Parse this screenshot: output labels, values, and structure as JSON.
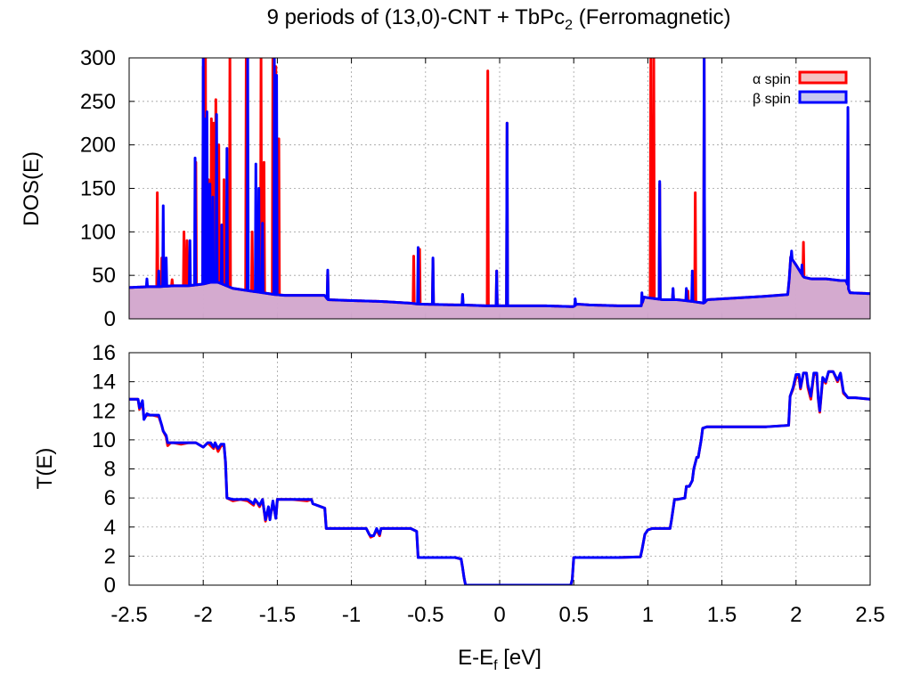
{
  "figure": {
    "title_main": "9 periods of (13,0)-CNT + TbPc",
    "title_sub": "2",
    "title_tail": " (Ferromagnetic)"
  },
  "chart_data": [
    {
      "type": "line",
      "name": "dos",
      "ylabel": "DOS(E)",
      "xlim": [
        -2.5,
        2.5
      ],
      "ylim": [
        0,
        300
      ],
      "yticks": [
        0,
        50,
        100,
        150,
        200,
        250,
        300
      ],
      "xticks": [
        -2.5,
        -2,
        -1.5,
        -1,
        -0.5,
        0,
        0.5,
        1,
        1.5,
        2,
        2.5
      ],
      "grid": true,
      "legend_position": "top-right",
      "legend": [
        {
          "label": "α spin",
          "line_color": "#ff0000",
          "fill_color": "#f4c2c2"
        },
        {
          "label": "β spin",
          "line_color": "#0000ff",
          "fill_color": "#c8c8f0"
        }
      ],
      "overlap_fill_color": "#c8a0d2",
      "baseline": [
        [
          -2.5,
          36
        ],
        [
          -2.36,
          37
        ],
        [
          -2.3,
          37
        ],
        [
          -2.2,
          38
        ],
        [
          -2.1,
          38
        ],
        [
          -2.0,
          40
        ],
        [
          -1.95,
          42
        ],
        [
          -1.9,
          42
        ],
        [
          -1.8,
          35
        ],
        [
          -1.72,
          33
        ],
        [
          -1.6,
          30
        ],
        [
          -1.52,
          28
        ],
        [
          -1.45,
          27
        ],
        [
          -1.3,
          27
        ],
        [
          -1.18,
          27
        ],
        [
          -1.16,
          22
        ],
        [
          -1.0,
          21
        ],
        [
          -0.8,
          20
        ],
        [
          -0.6,
          18
        ],
        [
          -0.55,
          17
        ],
        [
          -0.3,
          16
        ],
        [
          -0.25,
          16
        ],
        [
          -0.1,
          15
        ],
        [
          0.0,
          15
        ],
        [
          0.3,
          15
        ],
        [
          0.5,
          14
        ],
        [
          0.52,
          17
        ],
        [
          0.6,
          16
        ],
        [
          0.8,
          15
        ],
        [
          0.96,
          15
        ],
        [
          0.97,
          25
        ],
        [
          1.1,
          22
        ],
        [
          1.2,
          22
        ],
        [
          1.3,
          20
        ],
        [
          1.38,
          18
        ],
        [
          1.4,
          22
        ],
        [
          1.6,
          24
        ],
        [
          1.8,
          26
        ],
        [
          1.95,
          28
        ],
        [
          1.96,
          72
        ],
        [
          2.0,
          62
        ],
        [
          2.05,
          48
        ],
        [
          2.1,
          46
        ],
        [
          2.2,
          46
        ],
        [
          2.3,
          44
        ],
        [
          2.34,
          44
        ],
        [
          2.36,
          30
        ],
        [
          2.5,
          29
        ]
      ],
      "series": [
        {
          "name": "α spin",
          "color": "#ff0000",
          "peaks": [
            [
              -2.31,
              145
            ],
            [
              -2.28,
              70
            ],
            [
              -2.21,
              45
            ],
            [
              -2.13,
              100
            ],
            [
              -2.11,
              90
            ],
            [
              -2.05,
              180
            ],
            [
              -2.0,
              290
            ],
            [
              -1.985,
              300
            ],
            [
              -1.965,
              160
            ],
            [
              -1.945,
              230
            ],
            [
              -1.93,
              225
            ],
            [
              -1.915,
              252
            ],
            [
              -1.895,
              200
            ],
            [
              -1.86,
              160
            ],
            [
              -1.82,
              300
            ],
            [
              -1.71,
              300
            ],
            [
              -1.67,
              100
            ],
            [
              -1.64,
              130
            ],
            [
              -1.61,
              300
            ],
            [
              -1.59,
              180
            ],
            [
              -1.53,
              300
            ],
            [
              -1.51,
              290
            ],
            [
              -1.49,
              207
            ],
            [
              -1.16,
              55
            ],
            [
              -0.58,
              72
            ],
            [
              -0.54,
              80
            ],
            [
              -0.45,
              68
            ],
            [
              -0.25,
              28
            ],
            [
              -0.08,
              285
            ],
            [
              -0.02,
              55
            ],
            [
              0.05,
              225
            ],
            [
              1.02,
              300
            ],
            [
              1.04,
              300
            ],
            [
              1.08,
              155
            ],
            [
              1.17,
              34
            ],
            [
              1.27,
              32
            ],
            [
              1.32,
              145
            ],
            [
              1.38,
              300
            ],
            [
              2.05,
              88
            ],
            [
              2.35,
              240
            ]
          ]
        },
        {
          "name": "β spin",
          "color": "#0000ff",
          "peaks": [
            [
              -2.38,
              46
            ],
            [
              -2.3,
              55
            ],
            [
              -2.27,
              130
            ],
            [
              -2.25,
              70
            ],
            [
              -2.09,
              90
            ],
            [
              -2.055,
              185
            ],
            [
              -2.0,
              300
            ],
            [
              -1.99,
              230
            ],
            [
              -1.975,
              238
            ],
            [
              -1.955,
              155
            ],
            [
              -1.935,
              140
            ],
            [
              -1.91,
              235
            ],
            [
              -1.875,
              108
            ],
            [
              -1.84,
              196
            ],
            [
              -1.7,
              300
            ],
            [
              -1.645,
              178
            ],
            [
              -1.625,
              150
            ],
            [
              -1.6,
              110
            ],
            [
              -1.52,
              300
            ],
            [
              -1.505,
              280
            ],
            [
              -1.16,
              56
            ],
            [
              -0.55,
              82
            ],
            [
              -0.45,
              70
            ],
            [
              -0.25,
              28
            ],
            [
              -0.02,
              55
            ],
            [
              0.05,
              225
            ],
            [
              0.51,
              23
            ],
            [
              0.96,
              30
            ],
            [
              1.08,
              158
            ],
            [
              1.17,
              35
            ],
            [
              1.26,
              35
            ],
            [
              1.3,
              55
            ],
            [
              1.38,
              300
            ],
            [
              1.97,
              78
            ],
            [
              2.04,
              62
            ],
            [
              2.35,
              243
            ]
          ]
        }
      ]
    },
    {
      "type": "line",
      "name": "transmission",
      "ylabel": "T(E)",
      "xlabel_main": "E-E",
      "xlabel_sub": "f",
      "xlabel_tail": " [eV]",
      "xlim": [
        -2.5,
        2.5
      ],
      "ylim": [
        0,
        16
      ],
      "yticks": [
        0,
        2,
        4,
        6,
        8,
        10,
        12,
        14,
        16
      ],
      "xticks": [
        -2.5,
        -2,
        -1.5,
        -1,
        -0.5,
        0,
        0.5,
        1,
        1.5,
        2,
        2.5
      ],
      "xtick_labels": [
        "-2.5",
        "-2",
        "-1.5",
        "-1",
        "-0.5",
        "0",
        "0.5",
        "1",
        "1.5",
        "2",
        "2.5"
      ],
      "grid": true,
      "series": [
        {
          "name": "α spin",
          "color": "#ff0000",
          "x": [
            -2.5,
            -2.44,
            -2.43,
            -2.41,
            -2.4,
            -2.38,
            -2.36,
            -2.34,
            -2.3,
            -2.28,
            -2.27,
            -2.25,
            -2.24,
            -2.22,
            -2.2,
            -2.15,
            -2.1,
            -2.05,
            -2.0,
            -1.97,
            -1.95,
            -1.93,
            -1.92,
            -1.9,
            -1.88,
            -1.86,
            -1.85,
            -1.84,
            -1.8,
            -1.75,
            -1.7,
            -1.66,
            -1.65,
            -1.62,
            -1.6,
            -1.58,
            -1.56,
            -1.55,
            -1.53,
            -1.51,
            -1.5,
            -1.49,
            -1.45,
            -1.4,
            -1.3,
            -1.27,
            -1.26,
            -1.18,
            -1.17,
            -1.0,
            -0.9,
            -0.88,
            -0.87,
            -0.85,
            -0.83,
            -0.82,
            -0.81,
            -0.8,
            -0.78,
            -0.6,
            -0.56,
            -0.55,
            -0.5,
            -0.3,
            -0.26,
            -0.25,
            -0.24,
            -0.23,
            -0.2,
            0.0,
            0.3,
            0.48,
            0.49,
            0.5,
            0.8,
            0.95,
            0.96,
            0.98,
            1.0,
            1.03,
            1.05,
            1.1,
            1.15,
            1.16,
            1.18,
            1.2,
            1.25,
            1.26,
            1.28,
            1.3,
            1.31,
            1.33,
            1.34,
            1.36,
            1.37,
            1.4,
            1.7,
            1.8,
            1.95,
            1.96,
            1.98,
            2.0,
            2.02,
            2.03,
            2.05,
            2.07,
            2.08,
            2.1,
            2.12,
            2.14,
            2.15,
            2.16,
            2.18,
            2.2,
            2.22,
            2.25,
            2.28,
            2.3,
            2.32,
            2.35,
            2.4,
            2.5
          ],
          "y": [
            12.8,
            12.8,
            12.1,
            12.6,
            11.5,
            11.7,
            11.7,
            11.7,
            11.6,
            11.0,
            10.6,
            10.2,
            9.6,
            9.8,
            9.8,
            9.7,
            9.8,
            9.8,
            9.5,
            9.8,
            9.6,
            9.4,
            9.8,
            9.2,
            9.6,
            9.6,
            8.5,
            6.0,
            5.8,
            5.9,
            5.8,
            5.5,
            5.9,
            5.4,
            5.9,
            4.4,
            5.3,
            4.6,
            5.7,
            4.6,
            5.9,
            5.9,
            5.9,
            5.9,
            5.8,
            5.9,
            5.6,
            5.3,
            3.9,
            3.9,
            3.9,
            3.5,
            3.3,
            3.4,
            3.8,
            3.6,
            3.4,
            3.9,
            3.9,
            3.9,
            3.7,
            1.9,
            1.9,
            1.9,
            1.8,
            1.2,
            0.5,
            0.0,
            0.0,
            0.0,
            0.0,
            0.0,
            0.4,
            1.9,
            1.9,
            1.95,
            2.4,
            3.5,
            3.8,
            3.9,
            3.9,
            3.9,
            3.9,
            4.5,
            5.9,
            5.9,
            6.0,
            6.8,
            6.8,
            7.2,
            8.0,
            8.8,
            8.8,
            10.0,
            10.8,
            10.9,
            10.9,
            10.9,
            11.0,
            13.0,
            13.5,
            14.3,
            14.3,
            13.5,
            14.6,
            14.6,
            13.6,
            12.8,
            14.5,
            14.5,
            12.8,
            11.9,
            14.2,
            13.9,
            14.7,
            14.7,
            14.0,
            14.5,
            13.2,
            12.9,
            12.9,
            12.8
          ]
        },
        {
          "name": "β spin",
          "color": "#0000ff",
          "x": [
            -2.5,
            -2.44,
            -2.43,
            -2.41,
            -2.4,
            -2.38,
            -2.36,
            -2.34,
            -2.3,
            -2.28,
            -2.27,
            -2.25,
            -2.24,
            -2.22,
            -2.2,
            -2.15,
            -2.1,
            -2.05,
            -2.0,
            -1.97,
            -1.95,
            -1.93,
            -1.92,
            -1.9,
            -1.88,
            -1.86,
            -1.85,
            -1.84,
            -1.8,
            -1.75,
            -1.7,
            -1.66,
            -1.65,
            -1.62,
            -1.6,
            -1.58,
            -1.56,
            -1.55,
            -1.53,
            -1.51,
            -1.5,
            -1.49,
            -1.45,
            -1.4,
            -1.3,
            -1.27,
            -1.26,
            -1.18,
            -1.17,
            -1.0,
            -0.9,
            -0.88,
            -0.87,
            -0.85,
            -0.83,
            -0.82,
            -0.81,
            -0.8,
            -0.78,
            -0.6,
            -0.56,
            -0.55,
            -0.5,
            -0.3,
            -0.26,
            -0.25,
            -0.24,
            -0.23,
            -0.2,
            0.0,
            0.3,
            0.48,
            0.49,
            0.5,
            0.8,
            0.95,
            0.96,
            0.98,
            1.0,
            1.03,
            1.05,
            1.1,
            1.15,
            1.16,
            1.18,
            1.2,
            1.25,
            1.26,
            1.28,
            1.3,
            1.31,
            1.33,
            1.34,
            1.36,
            1.37,
            1.4,
            1.7,
            1.8,
            1.95,
            1.96,
            1.98,
            2.0,
            2.02,
            2.03,
            2.05,
            2.07,
            2.08,
            2.1,
            2.12,
            2.14,
            2.15,
            2.16,
            2.18,
            2.2,
            2.22,
            2.25,
            2.28,
            2.3,
            2.32,
            2.35,
            2.4,
            2.5
          ],
          "y": [
            12.8,
            12.8,
            12.2,
            12.7,
            11.4,
            11.8,
            11.7,
            11.7,
            11.7,
            11.0,
            10.6,
            10.3,
            9.8,
            9.8,
            9.8,
            9.8,
            9.8,
            9.8,
            9.5,
            9.8,
            9.8,
            9.5,
            9.8,
            9.4,
            9.7,
            9.7,
            8.5,
            6.0,
            5.9,
            5.9,
            5.9,
            5.6,
            5.9,
            5.5,
            5.9,
            4.5,
            5.4,
            4.5,
            5.8,
            4.6,
            5.9,
            5.9,
            5.9,
            5.9,
            5.9,
            5.9,
            5.6,
            5.3,
            3.9,
            3.9,
            3.9,
            3.5,
            3.4,
            3.4,
            3.9,
            3.7,
            3.5,
            3.9,
            3.9,
            3.9,
            3.7,
            1.9,
            1.9,
            1.9,
            1.8,
            1.2,
            0.5,
            0.0,
            0.0,
            0.0,
            0.0,
            0.0,
            0.4,
            1.9,
            1.9,
            1.95,
            2.4,
            3.5,
            3.8,
            3.9,
            3.9,
            3.9,
            3.9,
            4.5,
            5.9,
            5.9,
            6.0,
            6.8,
            6.8,
            7.2,
            8.0,
            8.8,
            8.8,
            10.0,
            10.8,
            10.9,
            10.9,
            10.9,
            11.0,
            13.0,
            13.6,
            14.5,
            14.5,
            13.6,
            14.6,
            14.6,
            13.8,
            13.0,
            14.6,
            14.6,
            12.9,
            12.0,
            14.3,
            14.0,
            14.7,
            14.7,
            14.1,
            14.6,
            13.3,
            12.9,
            12.9,
            12.8
          ]
        }
      ]
    }
  ]
}
